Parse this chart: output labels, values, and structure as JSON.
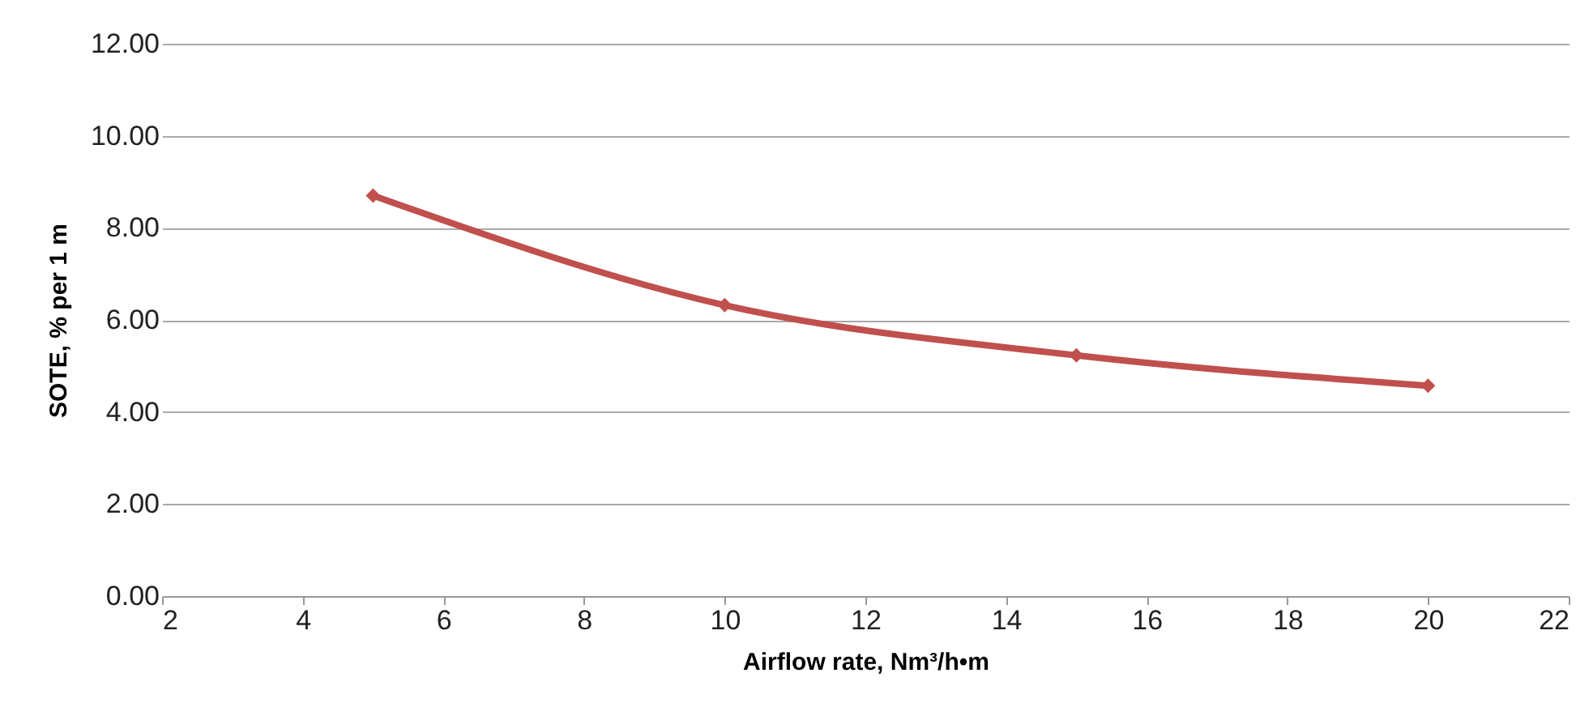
{
  "chart_data": {
    "type": "line",
    "xlabel": "Airflow rate, Nm³/h•m",
    "ylabel": "SOTE, % per 1 m",
    "x": [
      5,
      10,
      15,
      20
    ],
    "series": [
      {
        "color": "#c0504d",
        "values": [
          8.7,
          6.32,
          5.23,
          4.57
        ]
      }
    ],
    "xlim": [
      2,
      22
    ],
    "xticks": [
      2,
      4,
      6,
      8,
      10,
      12,
      14,
      16,
      18,
      20,
      22
    ],
    "ylim": [
      0,
      12
    ],
    "yticks": [
      {
        "value": 0,
        "label": "0.00"
      },
      {
        "value": 2,
        "label": "2.00"
      },
      {
        "value": 4,
        "label": "4.00"
      },
      {
        "value": 6,
        "label": "6.00"
      },
      {
        "value": 8,
        "label": "8.00"
      },
      {
        "value": 10,
        "label": "10.00"
      },
      {
        "value": 12,
        "label": "12.00"
      }
    ],
    "grid": "y",
    "marker": "diamond",
    "line_style": "solid"
  }
}
